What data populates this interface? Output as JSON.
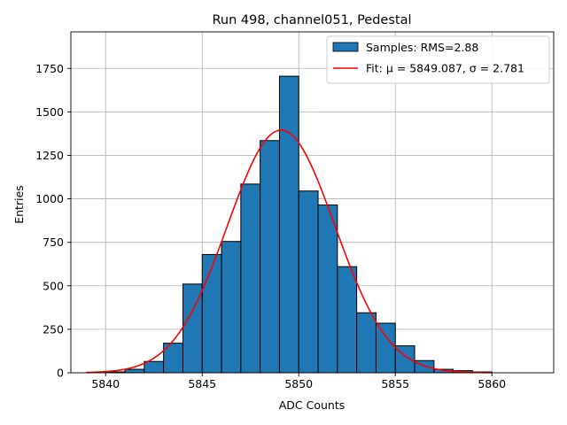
{
  "chart_data": {
    "type": "bar",
    "title": "Run 498, channel051, Pedestal",
    "xlabel": "ADC Counts",
    "ylabel": "Entries",
    "xlim": [
      5838.2,
      5863.2
    ],
    "ylim": [
      0,
      1960
    ],
    "xticks": [
      5840,
      5845,
      5850,
      5855,
      5860
    ],
    "yticks": [
      0,
      250,
      500,
      750,
      1000,
      1250,
      1500,
      1750
    ],
    "grid": true,
    "legend_position": "top-right",
    "bin_width": 1,
    "bins": [
      {
        "x0": 5840,
        "count": 5
      },
      {
        "x0": 5841,
        "count": 20
      },
      {
        "x0": 5842,
        "count": 65
      },
      {
        "x0": 5843,
        "count": 170
      },
      {
        "x0": 5844,
        "count": 510
      },
      {
        "x0": 5845,
        "count": 680
      },
      {
        "x0": 5846,
        "count": 755
      },
      {
        "x0": 5847,
        "count": 1085
      },
      {
        "x0": 5848,
        "count": 1335
      },
      {
        "x0": 5849,
        "count": 1705
      },
      {
        "x0": 5850,
        "count": 1045
      },
      {
        "x0": 5851,
        "count": 965
      },
      {
        "x0": 5852,
        "count": 610
      },
      {
        "x0": 5853,
        "count": 345
      },
      {
        "x0": 5854,
        "count": 285
      },
      {
        "x0": 5855,
        "count": 155
      },
      {
        "x0": 5856,
        "count": 70
      },
      {
        "x0": 5857,
        "count": 20
      },
      {
        "x0": 5858,
        "count": 12
      },
      {
        "x0": 5859,
        "count": 5
      }
    ],
    "fit": {
      "type": "gaussian",
      "mu": 5849.087,
      "sigma": 2.781,
      "amplitude": 1395,
      "x_range": [
        5839,
        5860
      ]
    },
    "legend": [
      {
        "label": "Samples: RMS=2.88",
        "kind": "patch",
        "color": "#1f77b4"
      },
      {
        "label": "Fit: μ = 5849.087, σ = 2.781",
        "kind": "line",
        "color": "#ff0000"
      }
    ],
    "colors": {
      "bar_fill": "#1f77b4",
      "bar_edge": "#000000",
      "fit_line": "#ff0000",
      "grid": "#b0b0b0"
    }
  }
}
